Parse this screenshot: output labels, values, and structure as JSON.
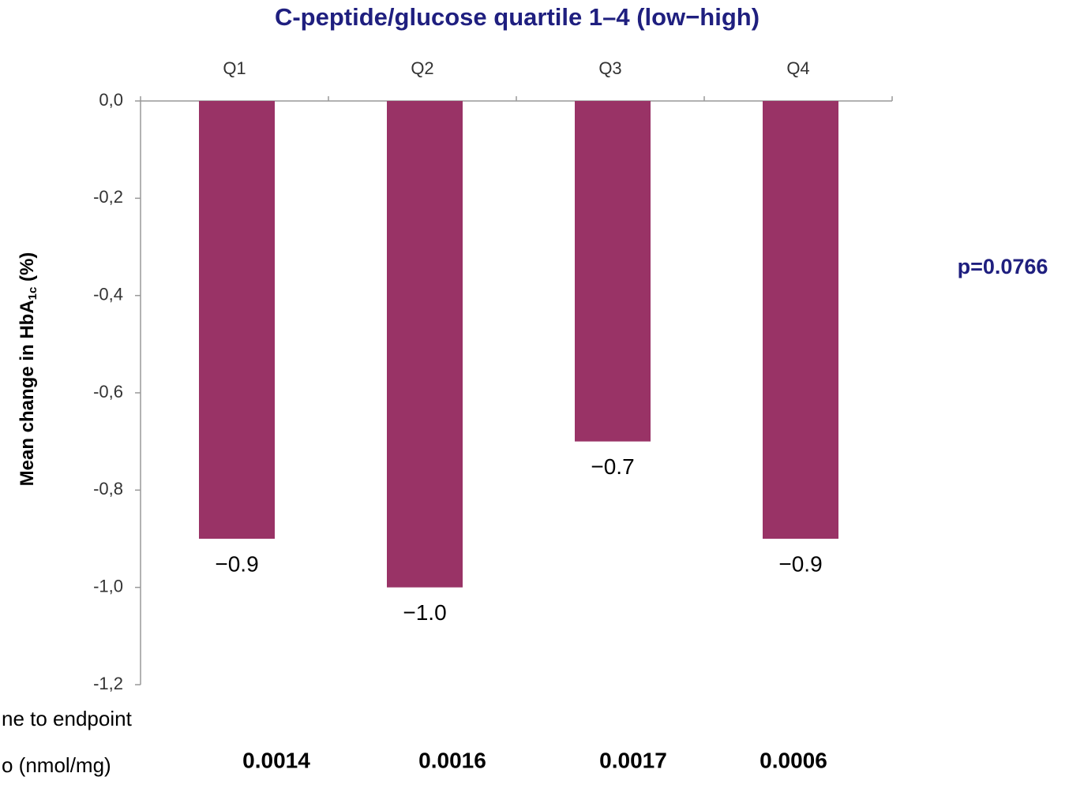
{
  "chart_data": {
    "type": "bar",
    "title": "C-peptide/glucose quartile 1–4 (low−high)",
    "y_label": "Mean change in HbA",
    "y_label_sub": "1c",
    "y_label_end": " (%)",
    "categories": [
      "Q1",
      "Q2",
      "Q3",
      "Q4"
    ],
    "values": [
      -0.9,
      -1.0,
      -0.7,
      -0.9
    ],
    "value_labels": [
      "−0.9",
      "−1.0",
      "−0.7",
      "−0.9"
    ],
    "color": "#993366",
    "ylim": [
      -1.2,
      0
    ],
    "yticks": [
      {
        "value": 0,
        "label": "0,0"
      },
      {
        "value": -0.2,
        "label": "-0,2"
      },
      {
        "value": -0.4,
        "label": "-0,4"
      },
      {
        "value": -0.6,
        "label": "-0,6"
      },
      {
        "value": -0.8,
        "label": "-0,8"
      },
      {
        "value": -1.0,
        "label": "-1,0"
      },
      {
        "value": -1.2,
        "label": "-1,2"
      }
    ],
    "annotation": "p=0.0766",
    "footer_labels": [
      "ne to endpoint",
      "o (nmol/mg)"
    ],
    "footer_values": [
      "0.0014",
      "0.0016",
      "0.0017",
      "0.0006"
    ]
  }
}
